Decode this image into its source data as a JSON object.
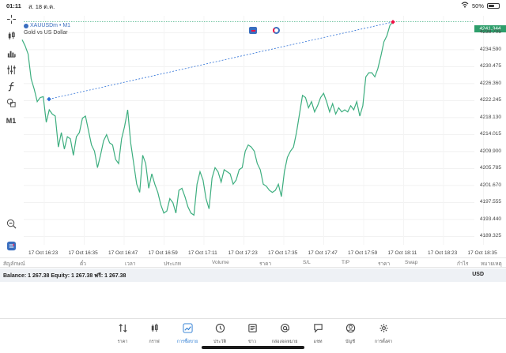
{
  "status_bar": {
    "time": "01:11",
    "date": "ส. 18 ต.ค.",
    "battery": "50%",
    "battery_level": 0.5
  },
  "chart": {
    "symbol": "XAUUSDm • M1",
    "description": "Gold vs US Dollar",
    "current_price": "4241.344",
    "price_labels": [
      "4238.705",
      "4234.590",
      "4230.475",
      "4226.360",
      "4222.245",
      "4218.130",
      "4214.015",
      "4209.900",
      "4205.785",
      "4201.670",
      "4197.555",
      "4193.440",
      "4189.325"
    ],
    "time_labels": [
      "17 Oct 16:23",
      "17 Oct 16:35",
      "17 Oct 16:47",
      "17 Oct 16:59",
      "17 Oct 17:11",
      "17 Oct 17:23",
      "17 Oct 17:35",
      "17 Oct 17:47",
      "17 Oct 17:59",
      "17 Oct 18:11",
      "17 Oct 18:23",
      "17 Oct 18:35"
    ],
    "line_color": "#3dae7f",
    "trend_line_color": "#2b6fd6"
  },
  "chart_data": {
    "type": "line",
    "title": "XAUUSDm • M1",
    "subtitle": "Gold vs US Dollar",
    "ylim": [
      4187.3,
      4242.8
    ],
    "series": [
      {
        "name": "XAUUSDm",
        "values": [
          4237.0,
          4235.5,
          4233.5,
          4227.5,
          4225.0,
          4222.0,
          4223.0,
          4223.2,
          4217.0,
          4220.0,
          4219.0,
          4218.5,
          4211.0,
          4214.5,
          4210.5,
          4213.5,
          4213.0,
          4209.0,
          4213.5,
          4214.5,
          4218.0,
          4218.5,
          4215.0,
          4211.5,
          4210.0,
          4206.0,
          4209.0,
          4212.5,
          4214.0,
          4212.0,
          4211.5,
          4208.0,
          4207.0,
          4213.0,
          4216.0,
          4220.0,
          4212.0,
          4207.0,
          4202.0,
          4200.0,
          4209.0,
          4207.0,
          4201.0,
          4204.5,
          4202.0,
          4200.0,
          4197.0,
          4195.0,
          4195.5,
          4198.5,
          4197.5,
          4195.0,
          4200.5,
          4201.0,
          4199.0,
          4196.5,
          4195.0,
          4194.5,
          4202.0,
          4205.0,
          4203.0,
          4198.5,
          4196.0,
          4203.5,
          4206.0,
          4205.0,
          4202.5,
          4205.5,
          4205.0,
          4204.5,
          4202.0,
          4203.0,
          4205.5,
          4206.0,
          4210.0,
          4211.5,
          4211.0,
          4210.0,
          4207.0,
          4205.5,
          4202.0,
          4201.5,
          4200.5,
          4200.0,
          4200.5,
          4202.0,
          4199.0,
          4205.0,
          4208.5,
          4210.0,
          4211.0,
          4214.5,
          4219.0,
          4223.5,
          4223.0,
          4220.5,
          4222.0,
          4219.5,
          4221.0,
          4223.0,
          4224.0,
          4222.0,
          4219.5,
          4221.5,
          4219.0,
          4220.5,
          4219.5,
          4220.0,
          4219.5,
          4221.0,
          4220.0,
          4222.0,
          4218.5,
          4221.0,
          4228.0,
          4229.0,
          4229.0,
          4228.0,
          4230.0,
          4233.0,
          4236.5,
          4238.0,
          4240.5,
          4241.3
        ]
      }
    ],
    "trend_line": [
      4222.6,
      4241.3
    ],
    "xlabel": "",
    "ylabel": ""
  },
  "columns": [
    "สัญลักษณ์",
    "ตั๋ว",
    "เวลา",
    "ประเภท",
    "Volume",
    "ราคา",
    "S/L",
    "T/P",
    "ราคา",
    "Swap",
    "กำไร",
    "หมายเหตุ"
  ],
  "balance": {
    "text": "Balance: 1 267.38 Equity: 1 267.38 ฟรี: 1 267.38",
    "currency": "USD"
  },
  "tabs": [
    {
      "label": "ราคา",
      "icon": "arrows-updown-icon"
    },
    {
      "label": "กราฟ",
      "icon": "candlestick-icon"
    },
    {
      "label": "การซื้อขาย",
      "icon": "trade-chart-icon",
      "active": true
    },
    {
      "label": "ประวัติ",
      "icon": "history-icon"
    },
    {
      "label": "ข่าว",
      "icon": "news-icon"
    },
    {
      "label": "กล่องจดหมาย",
      "icon": "at-mail-icon"
    },
    {
      "label": "แชท",
      "icon": "chat-icon"
    },
    {
      "label": "บัญชี",
      "icon": "account-icon"
    },
    {
      "label": "การตั้งค่า",
      "icon": "settings-icon"
    }
  ],
  "tools": [
    "crosshair-icon",
    "candlestick-icon",
    "bar-chart-icon",
    "indicators-icon",
    "function-icon",
    "shapes-icon",
    "timeframe-label",
    "zoom-icon",
    "trade-icon"
  ],
  "timeframe": "M1"
}
